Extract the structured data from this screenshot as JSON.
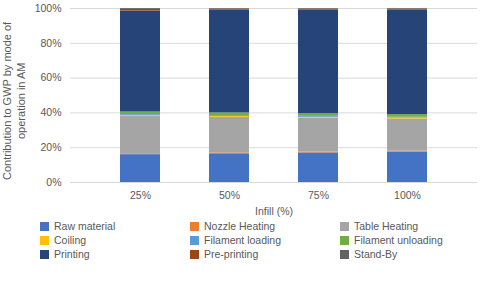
{
  "chart_data": {
    "type": "bar",
    "stacked": true,
    "ylabel": "Contribution to GWP by mode of operation in AM",
    "xlabel": "Infill (%)",
    "categories": [
      "25%",
      "50%",
      "75%",
      "100%"
    ],
    "series": [
      {
        "name": "Raw material",
        "color": "#4472c4",
        "values": [
          16,
          16.5,
          17,
          17.5
        ]
      },
      {
        "name": "Nozzle Heating",
        "color": "#ed7d31",
        "values": [
          0.5,
          0.5,
          0.5,
          0.5
        ]
      },
      {
        "name": "Table Heating",
        "color": "#a5a5a5",
        "values": [
          21.5,
          20.5,
          19.5,
          18.5
        ]
      },
      {
        "name": "Coiling",
        "color": "#ffc000",
        "values": [
          0.5,
          0.5,
          0.5,
          0.5
        ]
      },
      {
        "name": "Filament loading",
        "color": "#5b9bd5",
        "values": [
          0.5,
          0.5,
          0.5,
          0.5
        ]
      },
      {
        "name": "Filament unloading",
        "color": "#70ad47",
        "values": [
          1.5,
          1.5,
          1.5,
          1.5
        ]
      },
      {
        "name": "Printing",
        "color": "#264478",
        "values": [
          58,
          59,
          59.5,
          60
        ]
      },
      {
        "name": "Pre-printing",
        "color": "#9e480e",
        "values": [
          1,
          0.7,
          0.7,
          0.7
        ]
      },
      {
        "name": "Stand-By",
        "color": "#636363",
        "values": [
          0.5,
          0.3,
          0.3,
          0.3
        ]
      }
    ],
    "ylim": [
      0,
      100
    ],
    "yticks": [
      {
        "value": 0,
        "label": "0%"
      },
      {
        "value": 20,
        "label": "20%"
      },
      {
        "value": 40,
        "label": "40%"
      },
      {
        "value": 60,
        "label": "60%"
      },
      {
        "value": 80,
        "label": "80%"
      },
      {
        "value": 100,
        "label": "100%"
      }
    ],
    "grid": true,
    "legend": "bottom"
  }
}
